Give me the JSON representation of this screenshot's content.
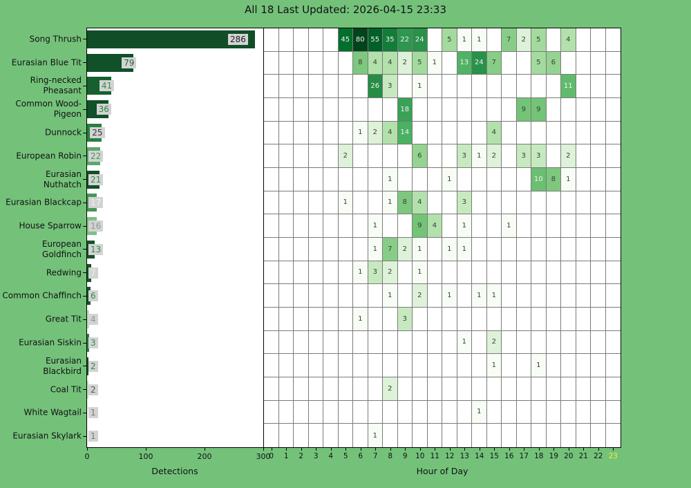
{
  "title": "All 18 Last Updated: 2026-04-15 23:33",
  "chart_data": [
    {
      "type": "bar",
      "orientation": "horizontal",
      "title": "All 18 Last Updated: 2026-04-15 23:33",
      "xlabel": "Detections",
      "xlim": [
        0,
        300
      ],
      "xticks": [
        "0",
        "100",
        "200",
        "300"
      ],
      "categories": [
        "Song Thrush",
        "Eurasian Blue Tit",
        "Ring-necked Pheasant",
        "Common Wood-Pigeon",
        "Dunnock",
        "European Robin",
        "Eurasian Nuthatch",
        "Eurasian Blackcap",
        "House Sparrow",
        "European Goldfinch",
        "Redwing",
        "Common Chaffinch",
        "Great Tit",
        "Eurasian Siskin",
        "Eurasian Blackbird",
        "Coal Tit",
        "White Wagtail",
        "Eurasian Skylark"
      ],
      "values": [
        286,
        79,
        41,
        36,
        25,
        22,
        21,
        17,
        16,
        13,
        7,
        6,
        4,
        3,
        2,
        2,
        1,
        1
      ]
    },
    {
      "type": "heatmap",
      "xlabel": "Hour of Day",
      "xticks": [
        "0",
        "1",
        "2",
        "3",
        "4",
        "5",
        "6",
        "7",
        "8",
        "9",
        "10",
        "11",
        "12",
        "13",
        "14",
        "15",
        "16",
        "17",
        "18",
        "19",
        "20",
        "21",
        "22",
        "23"
      ],
      "highlighted_xtick": "23",
      "colormap": "Greens",
      "norm": "log",
      "vmin": 1,
      "vmax": 80,
      "rows": [
        {
          "name": "Song Thrush",
          "cells": {
            "5": 45,
            "6": 80,
            "7": 55,
            "8": 35,
            "9": 22,
            "10": 24,
            "12": 5,
            "13": 1,
            "14": 1,
            "16": 7,
            "17": 2,
            "18": 5,
            "20": 4
          }
        },
        {
          "name": "Eurasian Blue Tit",
          "cells": {
            "6": 8,
            "7": 4,
            "8": 4,
            "9": 2,
            "10": 5,
            "11": 1,
            "13": 13,
            "14": 24,
            "15": 7,
            "18": 5,
            "19": 6
          }
        },
        {
          "name": "Ring-necked Pheasant",
          "cells": {
            "7": 26,
            "8": 3,
            "10": 1,
            "20": 11
          }
        },
        {
          "name": "Common Wood-Pigeon",
          "cells": {
            "9": 18,
            "17": 9,
            "18": 9
          }
        },
        {
          "name": "Dunnock",
          "cells": {
            "6": 1,
            "7": 2,
            "8": 4,
            "9": 14,
            "15": 4
          }
        },
        {
          "name": "European Robin",
          "cells": {
            "5": 2,
            "10": 6,
            "13": 3,
            "14": 1,
            "15": 2,
            "17": 3,
            "18": 3,
            "20": 2
          }
        },
        {
          "name": "Eurasian Nuthatch",
          "cells": {
            "8": 1,
            "12": 1,
            "18": 10,
            "19": 8,
            "20": 1
          }
        },
        {
          "name": "Eurasian Blackcap",
          "cells": {
            "5": 1,
            "8": 1,
            "9": 8,
            "10": 4,
            "13": 3
          }
        },
        {
          "name": "House Sparrow",
          "cells": {
            "7": 1,
            "10": 9,
            "11": 4,
            "13": 1,
            "16": 1
          }
        },
        {
          "name": "European Goldfinch",
          "cells": {
            "7": 1,
            "8": 7,
            "9": 2,
            "10": 1,
            "12": 1,
            "13": 1
          }
        },
        {
          "name": "Redwing",
          "cells": {
            "6": 1,
            "7": 3,
            "8": 2,
            "10": 1
          }
        },
        {
          "name": "Common Chaffinch",
          "cells": {
            "8": 1,
            "10": 2,
            "12": 1,
            "14": 1,
            "15": 1
          }
        },
        {
          "name": "Great Tit",
          "cells": {
            "6": 1,
            "9": 3
          }
        },
        {
          "name": "Eurasian Siskin",
          "cells": {
            "13": 1,
            "15": 2
          }
        },
        {
          "name": "Eurasian Blackbird",
          "cells": {
            "15": 1,
            "18": 1
          }
        },
        {
          "name": "Coal Tit",
          "cells": {
            "8": 2
          }
        },
        {
          "name": "White Wagtail",
          "cells": {
            "14": 1
          }
        },
        {
          "name": "Eurasian Skylark",
          "cells": {
            "7": 1
          }
        }
      ]
    }
  ],
  "presentation": {
    "background_color": "#74c27a",
    "plot_background": "#ffffff",
    "grid_line_color": "#7a7a7a",
    "count_box_color": "#d3d3d3",
    "hour_highlight_color": "#eff135",
    "cell_text_dark": "#3c3c3c",
    "cell_text_light": "#f2f2f2",
    "label_lines": [
      [
        "Song Thrush"
      ],
      [
        "Eurasian Blue Tit"
      ],
      [
        "Ring-necked",
        "Pheasant"
      ],
      [
        "Common Wood-",
        "Pigeon"
      ],
      [
        "Dunnock"
      ],
      [
        "European Robin"
      ],
      [
        "Eurasian",
        "Nuthatch"
      ],
      [
        "Eurasian Blackcap"
      ],
      [
        "House Sparrow"
      ],
      [
        "European",
        "Goldfinch"
      ],
      [
        "Redwing"
      ],
      [
        "Common Chaffinch"
      ],
      [
        "Great Tit"
      ],
      [
        "Eurasian Siskin"
      ],
      [
        "Eurasian",
        "Blackbird"
      ],
      [
        "Coal Tit"
      ],
      [
        "White Wagtail"
      ],
      [
        "Eurasian Skylark"
      ]
    ],
    "bar_colors": [
      "#114e28",
      "#10512a",
      "#166030",
      "#0f5128",
      "#28803f",
      "#5aa86c",
      "#124f27",
      "#459659",
      "#7fc087",
      "#145427",
      "#145427",
      "#145427",
      "#bfe1bf",
      "#2b7e41",
      "#145427",
      "#c4e3c4",
      "#eef7ee",
      "#eef7ee"
    ],
    "count_label_colors": [
      "#1a1a1a",
      "#1d6a33",
      "#2f8b46",
      "#27813d",
      "#333333",
      "#3f9b55",
      "#2f8b46",
      "#eef5ee",
      "#8b9b8b",
      "#2f8b46",
      "#e9f1e9",
      "#2f8b46",
      "#8b9b8b",
      "#2f8b46",
      "#2f8b46",
      "#555555",
      "#777777",
      "#777777"
    ],
    "colormap_stops": [
      [
        0.0,
        "#f7fcf5"
      ],
      [
        0.125,
        "#e5f5e0"
      ],
      [
        0.25,
        "#c7e9c0"
      ],
      [
        0.375,
        "#a1d99b"
      ],
      [
        0.5,
        "#74c476"
      ],
      [
        0.625,
        "#41ab5d"
      ],
      [
        0.75,
        "#238b45"
      ],
      [
        0.875,
        "#006d2c"
      ],
      [
        1.0,
        "#00441b"
      ]
    ]
  }
}
